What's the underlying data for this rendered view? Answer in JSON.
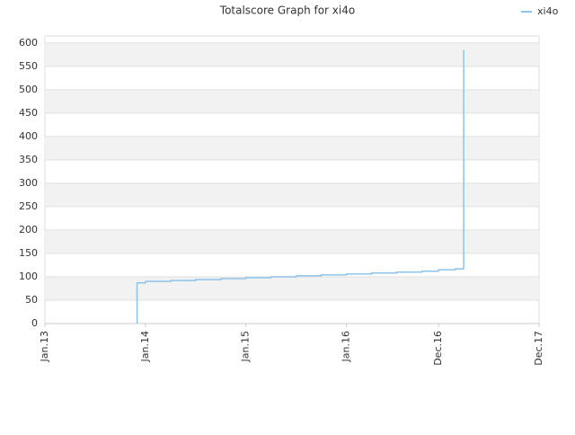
{
  "chart_data": {
    "type": "line",
    "title": "Totalscore Graph for xi4o",
    "x": [
      "2013-12",
      "2013-12",
      "2014-01",
      "2014-04",
      "2014-07",
      "2014-10",
      "2015-01",
      "2015-04",
      "2015-07",
      "2015-10",
      "2016-01",
      "2016-04",
      "2016-07",
      "2016-10",
      "2016-12",
      "2017-02",
      "2017-03",
      "2017-03",
      "2017-03",
      "2017-03"
    ],
    "series": [
      {
        "name": "xi4o",
        "color": "#8ec3ea",
        "values": [
          0,
          87,
          90,
          92,
          94,
          96,
          98,
          100,
          102,
          104,
          106,
          108,
          110,
          112,
          115,
          117,
          118,
          435,
          530,
          585
        ]
      }
    ],
    "xlim": [
      "2013-01",
      "2017-12"
    ],
    "xticks": [
      {
        "value": "2013-01",
        "label": "Jan.13"
      },
      {
        "value": "2014-01",
        "label": "Jan.14"
      },
      {
        "value": "2015-01",
        "label": "Jan.15"
      },
      {
        "value": "2016-01",
        "label": "Jan.16"
      },
      {
        "value": "2016-12",
        "label": "Dec.16"
      },
      {
        "value": "2017-12",
        "label": "Dec.17"
      }
    ],
    "ylim": [
      0,
      615
    ],
    "yticks": [
      0,
      50,
      100,
      150,
      200,
      250,
      300,
      350,
      400,
      450,
      500,
      550,
      600
    ],
    "grid": true,
    "step": true,
    "legend": "top-right"
  }
}
